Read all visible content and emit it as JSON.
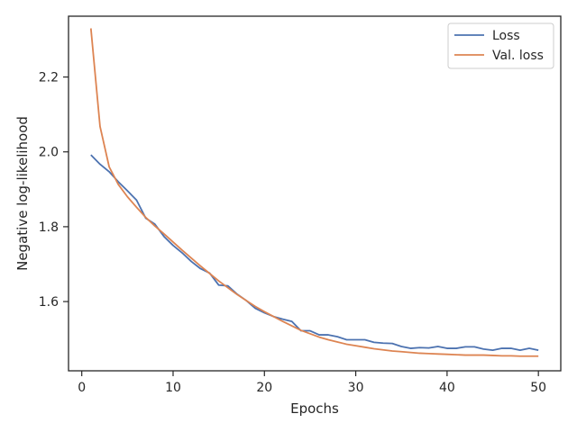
{
  "chart_data": {
    "type": "line",
    "title": "",
    "xlabel": "Epochs",
    "ylabel": "Negative log-likelihood",
    "xlim": [
      -1.45,
      52.45
    ],
    "ylim": [
      1.415,
      2.3625
    ],
    "x_ticks": [
      {
        "value": 0,
        "label": "0"
      },
      {
        "value": 10,
        "label": "10"
      },
      {
        "value": 20,
        "label": "20"
      },
      {
        "value": 30,
        "label": "30"
      },
      {
        "value": 40,
        "label": "40"
      },
      {
        "value": 50,
        "label": "50"
      }
    ],
    "y_ticks": [
      {
        "value": 1.6,
        "label": "1.6"
      },
      {
        "value": 1.8,
        "label": "1.8"
      },
      {
        "value": 2.0,
        "label": "2.0"
      },
      {
        "value": 2.2,
        "label": "2.2"
      }
    ],
    "grid": false,
    "legend_position": "top-right",
    "x": [
      1,
      2,
      3,
      4,
      5,
      6,
      7,
      8,
      9,
      10,
      11,
      12,
      13,
      14,
      15,
      16,
      17,
      18,
      19,
      20,
      21,
      22,
      23,
      24,
      25,
      26,
      27,
      28,
      29,
      30,
      31,
      32,
      33,
      34,
      35,
      36,
      37,
      38,
      39,
      40,
      41,
      42,
      43,
      44,
      45,
      46,
      47,
      48,
      49,
      50
    ],
    "series": [
      {
        "name": "Loss",
        "color": "#4c72b0",
        "values": [
          1.992,
          1.967,
          1.947,
          1.92,
          1.896,
          1.871,
          1.823,
          1.807,
          1.774,
          1.75,
          1.73,
          1.707,
          1.688,
          1.676,
          1.644,
          1.642,
          1.62,
          1.603,
          1.582,
          1.57,
          1.56,
          1.553,
          1.547,
          1.522,
          1.522,
          1.511,
          1.511,
          1.506,
          1.498,
          1.498,
          1.498,
          1.491,
          1.489,
          1.488,
          1.48,
          1.475,
          1.477,
          1.476,
          1.48,
          1.475,
          1.475,
          1.479,
          1.479,
          1.473,
          1.47,
          1.475,
          1.475,
          1.47,
          1.475,
          1.47
        ]
      },
      {
        "name": "Val. loss",
        "color": "#dd8452",
        "values": [
          2.33,
          2.068,
          1.96,
          1.913,
          1.88,
          1.852,
          1.825,
          1.802,
          1.781,
          1.759,
          1.737,
          1.716,
          1.695,
          1.675,
          1.655,
          1.637,
          1.619,
          1.603,
          1.587,
          1.573,
          1.56,
          1.547,
          1.535,
          1.523,
          1.514,
          1.505,
          1.498,
          1.492,
          1.486,
          1.482,
          1.478,
          1.474,
          1.471,
          1.468,
          1.466,
          1.464,
          1.462,
          1.461,
          1.46,
          1.459,
          1.458,
          1.457,
          1.457,
          1.457,
          1.456,
          1.455,
          1.455,
          1.454,
          1.454,
          1.454
        ]
      }
    ]
  }
}
